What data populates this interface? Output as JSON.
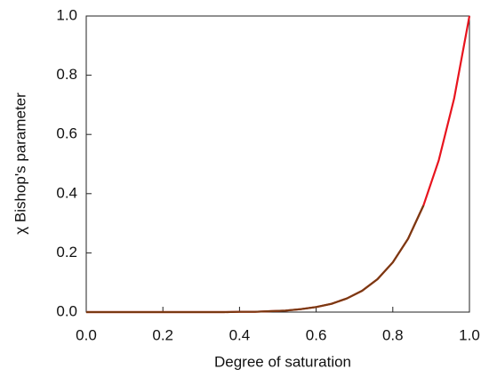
{
  "chart_data": {
    "type": "line",
    "x_label": "Degree of saturation",
    "y_label": "χ  Bishop's parameter",
    "x": [
      0,
      0.04,
      0.08,
      0.12,
      0.16,
      0.2,
      0.24,
      0.28,
      0.32,
      0.36,
      0.4,
      0.44,
      0.48,
      0.52,
      0.56,
      0.6,
      0.64,
      0.68,
      0.72,
      0.76,
      0.8,
      0.84,
      0.88,
      0.92,
      0.96,
      1.0
    ],
    "series": [
      {
        "color": "#e8141e",
        "values": [
          0,
          0,
          0,
          0,
          0,
          0,
          0,
          0,
          0,
          0,
          0.001,
          0.001,
          0.003,
          0.005,
          0.01,
          0.017,
          0.028,
          0.046,
          0.072,
          0.111,
          0.168,
          0.248,
          0.36,
          0.513,
          0.721,
          1.0
        ]
      },
      {
        "color": "#7a3a12",
        "values": [
          0,
          0,
          0,
          0,
          0,
          0,
          0,
          0,
          0,
          0,
          0.001,
          0.001,
          0.003,
          0.005,
          0.01,
          0.017,
          0.028,
          0.046,
          0.072,
          0.111,
          0.168,
          0.248,
          0.36,
          null,
          null,
          null
        ]
      }
    ],
    "xlim": [
      0,
      1.0
    ],
    "ylim": [
      0,
      1.0
    ],
    "xticks": [
      {
        "value": 0,
        "label": "0.0"
      },
      0.2,
      0.4,
      0.6,
      0.8,
      {
        "value": 1.0,
        "label": "1.0"
      }
    ],
    "yticks": [
      {
        "value": 0,
        "label": "0.0"
      },
      0.2,
      0.4,
      0.6,
      0.8,
      {
        "value": 1.0,
        "label": "1.0"
      }
    ]
  }
}
